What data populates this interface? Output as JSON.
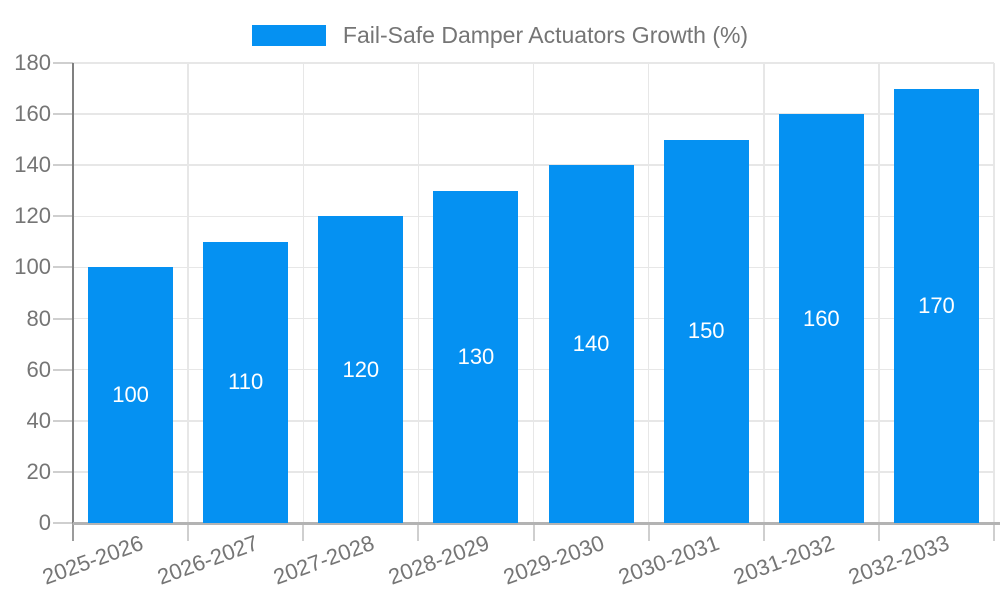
{
  "chart_data": {
    "type": "bar",
    "title": "Fail-Safe Damper Actuators Growth (%)",
    "categories": [
      "2025-2026",
      "2026-2027",
      "2027-2028",
      "2028-2029",
      "2029-2030",
      "2030-2031",
      "2031-2032",
      "2032-2033"
    ],
    "values": [
      100,
      110,
      120,
      130,
      140,
      150,
      160,
      170
    ],
    "bar_labels": [
      "100",
      "110",
      "120",
      "130",
      "140",
      "150",
      "160",
      "170"
    ],
    "xlabel": "",
    "ylabel": "",
    "ylim": [
      0,
      180
    ],
    "ytick_step": 20,
    "yticks": [
      0,
      20,
      40,
      60,
      80,
      100,
      120,
      140,
      160,
      180
    ],
    "grid": true,
    "legend_position": "top-center",
    "x_label_rotation_deg": -20,
    "colors": {
      "bar": "#0591F2",
      "bar_label": "#FFFFFF",
      "axis_text": "#757575",
      "grid_line": "#E7E7E7",
      "axis_line": "#808080",
      "baseline": "#B3B3B3",
      "tick": "#CFCFCF",
      "first_bottom_tick": "#9B9B9B",
      "background": "#FFFFFF"
    }
  }
}
